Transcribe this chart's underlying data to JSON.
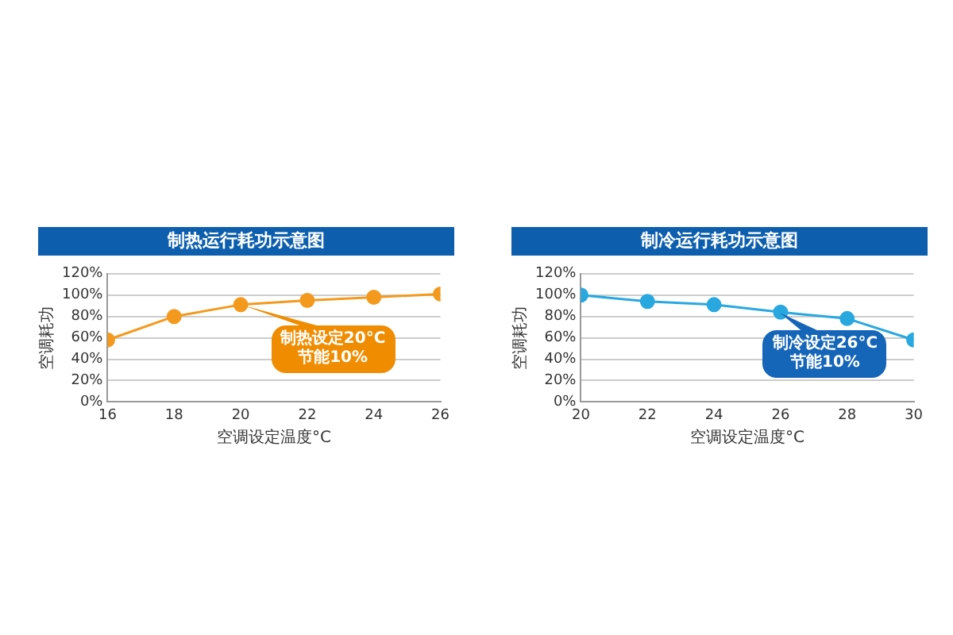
{
  "chart_data": [
    {
      "type": "line",
      "title": "制热运行耗功示意图",
      "xlabel": "空调设定温度°C",
      "ylabel": "空调耗功",
      "x": [
        16,
        18,
        20,
        22,
        24,
        26
      ],
      "values": [
        58,
        80,
        91,
        95,
        98,
        101
      ],
      "color": "#f39a1e",
      "marker": "circle",
      "xlim": [
        16,
        26
      ],
      "xticks": [
        16,
        18,
        20,
        22,
        24,
        26
      ],
      "ylim": [
        0,
        120
      ],
      "yticks": [
        {
          "value": 0,
          "label": "0%"
        },
        {
          "value": 20,
          "label": "20%"
        },
        {
          "value": 40,
          "label": "40%"
        },
        {
          "value": 60,
          "label": "60%"
        },
        {
          "value": 80,
          "label": "80%"
        },
        {
          "value": 100,
          "label": "100%"
        },
        {
          "value": 120,
          "label": "120%"
        }
      ],
      "grid": "y",
      "annotations": [
        {
          "text": "制热设定20°C\n节能10%",
          "x": 20,
          "y": 91
        }
      ]
    },
    {
      "type": "line",
      "title": "制冷运行耗功示意图",
      "xlabel": "空调设定温度°C",
      "ylabel": "空调耗功",
      "x": [
        20,
        22,
        24,
        26,
        28,
        30
      ],
      "values": [
        100,
        94,
        91,
        84,
        78,
        58
      ],
      "color": "#29a8e0",
      "marker": "circle",
      "xlim": [
        20,
        30
      ],
      "xticks": [
        20,
        22,
        24,
        26,
        28,
        30
      ],
      "ylim": [
        0,
        120
      ],
      "yticks": [
        {
          "value": 0,
          "label": "0%"
        },
        {
          "value": 20,
          "label": "20%"
        },
        {
          "value": 40,
          "label": "40%"
        },
        {
          "value": 60,
          "label": "60%"
        },
        {
          "value": 80,
          "label": "80%"
        },
        {
          "value": 100,
          "label": "100%"
        },
        {
          "value": 120,
          "label": "120%"
        }
      ],
      "grid": "y",
      "annotations": [
        {
          "text": "制冷设定26°C\n节能10%",
          "x": 26,
          "y": 84
        }
      ]
    }
  ]
}
